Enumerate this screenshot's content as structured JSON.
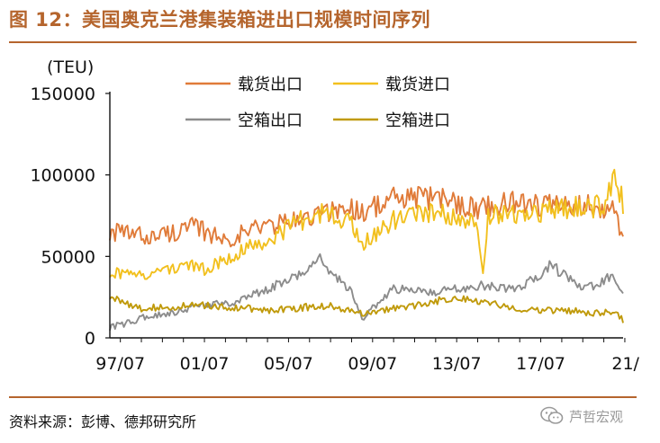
{
  "figure": {
    "title": "图 12：美国奥克兰港集装箱进出口规模时间序列",
    "source": "资料来源：彭博、德邦研究所",
    "watermark": "芦哲宏观"
  },
  "chart_data": {
    "type": "line",
    "y_unit_label": "(TEU)",
    "ylim": [
      0,
      150000
    ],
    "yticks": [
      0,
      50000,
      100000,
      150000
    ],
    "x_range": [
      "1997-01",
      "2021-06"
    ],
    "xticks": [
      "97/07",
      "01/07",
      "05/07",
      "09/07",
      "13/07",
      "17/07",
      "21/"
    ],
    "x_tick_dates": [
      "1997-07",
      "2001-07",
      "2005-07",
      "2009-07",
      "2013-07",
      "2017-07",
      "2021-07"
    ],
    "grid": false,
    "legend_position": "top",
    "series": [
      {
        "name": "载货出口",
        "color": "#e07b39",
        "anchors": [
          [
            "1997-01",
            65000
          ],
          [
            "1999-01",
            62000
          ],
          [
            "2001-01",
            68000
          ],
          [
            "2002-07",
            60000
          ],
          [
            "2004-01",
            68000
          ],
          [
            "2006-01",
            72000
          ],
          [
            "2008-01",
            80000
          ],
          [
            "2009-01",
            78000
          ],
          [
            "2010-07",
            85000
          ],
          [
            "2012-07",
            86000
          ],
          [
            "2014-07",
            80000
          ],
          [
            "2016-07",
            84000
          ],
          [
            "2018-07",
            80000
          ],
          [
            "2020-01",
            82000
          ],
          [
            "2021-01",
            78000
          ],
          [
            "2021-06",
            62000
          ]
        ]
      },
      {
        "name": "载货进口",
        "color": "#f2c01e",
        "anchors": [
          [
            "1997-01",
            40000
          ],
          [
            "1998-07",
            38000
          ],
          [
            "2000-07",
            45000
          ],
          [
            "2001-07",
            42000
          ],
          [
            "2003-01",
            52000
          ],
          [
            "2004-07",
            60000
          ],
          [
            "2006-01",
            72000
          ],
          [
            "2007-07",
            78000
          ],
          [
            "2008-07",
            70000
          ],
          [
            "2009-01",
            58000
          ],
          [
            "2010-07",
            72000
          ],
          [
            "2012-07",
            78000
          ],
          [
            "2014-07",
            72000
          ],
          [
            "2014-10",
            38000
          ],
          [
            "2015-01",
            75000
          ],
          [
            "2017-07",
            78000
          ],
          [
            "2019-07",
            80000
          ],
          [
            "2020-07",
            82000
          ],
          [
            "2021-01",
            98000
          ],
          [
            "2021-06",
            83000
          ]
        ]
      },
      {
        "name": "空箱出口",
        "color": "#8c8c8c",
        "anchors": [
          [
            "1997-01",
            6000
          ],
          [
            "1998-07",
            12000
          ],
          [
            "2000-07",
            17000
          ],
          [
            "2001-07",
            20000
          ],
          [
            "2003-01",
            22000
          ],
          [
            "2004-07",
            30000
          ],
          [
            "2006-01",
            38000
          ],
          [
            "2007-01",
            50000
          ],
          [
            "2007-07",
            40000
          ],
          [
            "2008-07",
            28000
          ],
          [
            "2009-01",
            12000
          ],
          [
            "2010-07",
            30000
          ],
          [
            "2012-07",
            28000
          ],
          [
            "2014-07",
            32000
          ],
          [
            "2016-07",
            30000
          ],
          [
            "2018-01",
            45000
          ],
          [
            "2019-07",
            30000
          ],
          [
            "2020-07",
            35000
          ],
          [
            "2021-01",
            38000
          ],
          [
            "2021-06",
            27000
          ]
        ]
      },
      {
        "name": "空箱进口",
        "color": "#c09a0b",
        "anchors": [
          [
            "1997-01",
            25000
          ],
          [
            "1998-07",
            18000
          ],
          [
            "2001-07",
            20000
          ],
          [
            "2004-07",
            17000
          ],
          [
            "2007-07",
            20000
          ],
          [
            "2009-01",
            15000
          ],
          [
            "2011-07",
            20000
          ],
          [
            "2013-07",
            25000
          ],
          [
            "2016-07",
            18000
          ],
          [
            "2019-07",
            16000
          ],
          [
            "2021-01",
            15000
          ],
          [
            "2021-06",
            11000
          ]
        ]
      }
    ]
  }
}
